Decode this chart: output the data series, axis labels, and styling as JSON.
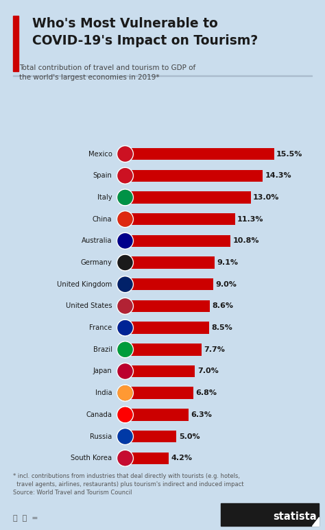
{
  "title_line1": "Who's Most Vulnerable to",
  "title_line2": "COVID-19's Impact on Tourism?",
  "subtitle": "Total contribution of travel and tourism to GDP of\nthe world's largest economies in 2019*",
  "footnote": "* incl. contributions from industries that deal directly with tourists (e.g. hotels,\n  travel agents, airlines, restaurants) plus tourism's indirect and induced impact\nSource: World Travel and Tourism Council",
  "countries": [
    "Mexico",
    "Spain",
    "Italy",
    "China",
    "Australia",
    "Germany",
    "United Kingdom",
    "United States",
    "France",
    "Brazil",
    "Japan",
    "India",
    "Canada",
    "Russia",
    "South Korea"
  ],
  "values": [
    15.5,
    14.3,
    13.0,
    11.3,
    10.8,
    9.1,
    9.0,
    8.6,
    8.5,
    7.7,
    7.0,
    6.8,
    6.3,
    5.0,
    4.2
  ],
  "bar_color": "#CC0000",
  "bg_color": "#CADDED",
  "title_color": "#1a1a1a",
  "subtitle_color": "#444444",
  "label_color": "#1a1a1a",
  "value_color": "#1a1a1a",
  "accent_color": "#CC0000",
  "max_value": 17.5
}
